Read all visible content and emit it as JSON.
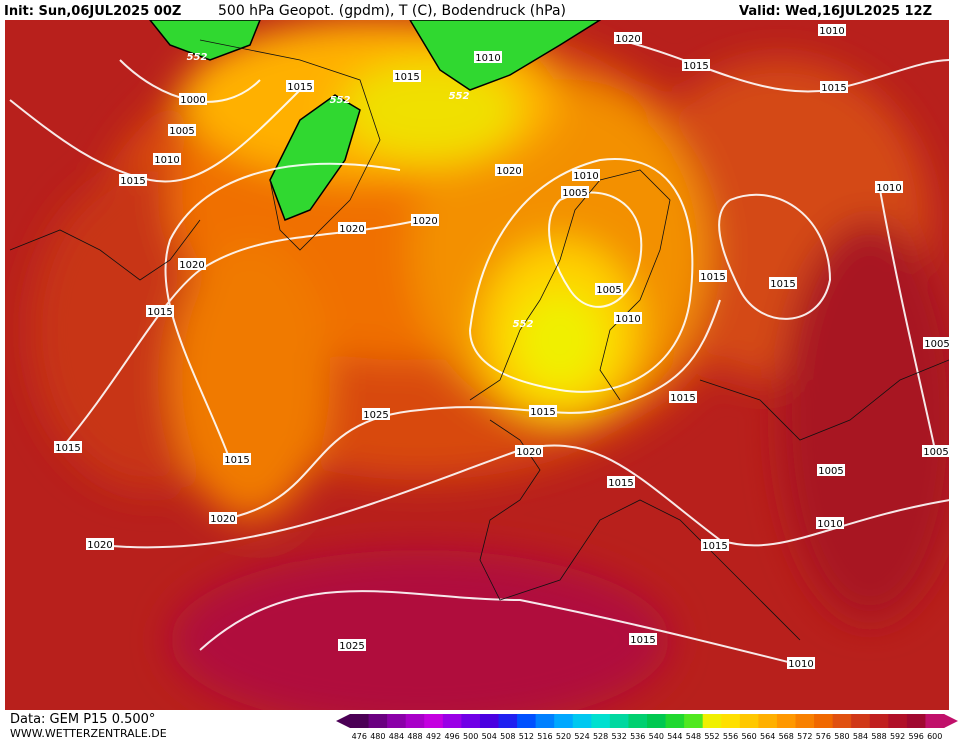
{
  "header": {
    "init": "Init: Sun,06JUL2025 00Z",
    "title": "500 hPa Geopot. (gpdm), T (C), Bodendruck (hPa)",
    "valid": "Valid: Wed,16JUL2025 12Z"
  },
  "footer": {
    "data": "Data: GEM P15 0.500°",
    "site": "WWW.WETTERZENTRALE.DE"
  },
  "isobar_labels": [
    1010,
    1015,
    1015,
    552,
    552,
    552,
    1000,
    1005,
    1010,
    1015,
    1020,
    1015,
    1010,
    1015,
    1020,
    1010,
    1005,
    1020,
    1020,
    1010,
    1020,
    1015,
    1015,
    1005,
    1010,
    1015,
    552,
    1005,
    1015,
    1015,
    1025,
    1015,
    1015,
    1020,
    1005,
    1005,
    1015,
    1020,
    1010,
    1020,
    1015,
    1015,
    1025,
    1010
  ],
  "colorbar": {
    "labels": [
      476,
      480,
      484,
      488,
      492,
      496,
      500,
      504,
      508,
      512,
      516,
      520,
      524,
      528,
      532,
      536,
      540,
      544,
      548,
      552,
      556,
      560,
      564,
      568,
      572,
      576,
      580,
      584,
      588,
      592,
      596,
      600
    ],
    "colors": [
      "#4b0055",
      "#6a0080",
      "#8a00a8",
      "#a800c8",
      "#c400e0",
      "#9a00e6",
      "#7000e6",
      "#4a00e0",
      "#2020f0",
      "#0050ff",
      "#0080ff",
      "#00a8ff",
      "#00c8f0",
      "#00e0d0",
      "#00d8a0",
      "#00d070",
      "#00c850",
      "#20d830",
      "#50e820",
      "#f0f000",
      "#ffe000",
      "#ffc800",
      "#ffb000",
      "#ff9800",
      "#f88000",
      "#f06800",
      "#e05010",
      "#d03818",
      "#c02020",
      "#b01028",
      "#a00830",
      "#c0106a"
    ]
  }
}
